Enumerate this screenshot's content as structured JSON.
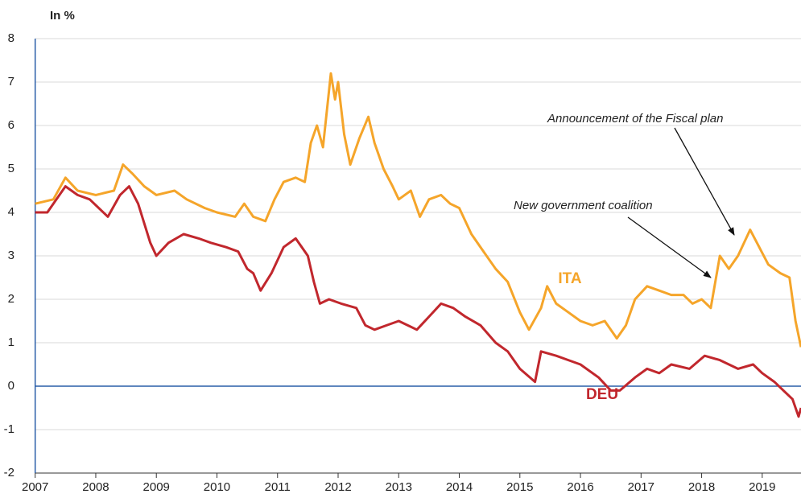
{
  "chart_data": {
    "type": "line",
    "y_label": "In %",
    "xlim": [
      2007,
      2019.64
    ],
    "xticks": [
      2007,
      2008,
      2009,
      2010,
      2011,
      2012,
      2013,
      2014,
      2015,
      2016,
      2017,
      2018,
      2019
    ],
    "ylim": [
      -2,
      8
    ],
    "yticks": [
      -2,
      -1,
      0,
      1,
      2,
      3,
      4,
      5,
      6,
      7,
      8
    ],
    "grid": true,
    "annotations": [
      "Announcement of the Fiscal plan",
      "New government coalition"
    ],
    "series": [
      {
        "name": "ITA",
        "color": "#f5a52a",
        "x": [
          2007.0,
          2007.3,
          2007.5,
          2007.7,
          2008.0,
          2008.3,
          2008.45,
          2008.6,
          2008.8,
          2009.0,
          2009.3,
          2009.5,
          2009.8,
          2010.0,
          2010.3,
          2010.45,
          2010.6,
          2010.8,
          2010.95,
          2011.1,
          2011.3,
          2011.45,
          2011.55,
          2011.65,
          2011.75,
          2011.88,
          2011.95,
          2012.0,
          2012.1,
          2012.2,
          2012.35,
          2012.5,
          2012.6,
          2012.75,
          2012.9,
          2013.0,
          2013.2,
          2013.35,
          2013.5,
          2013.7,
          2013.85,
          2014.0,
          2014.2,
          2014.4,
          2014.6,
          2014.8,
          2015.0,
          2015.15,
          2015.35,
          2015.45,
          2015.6,
          2015.8,
          2016.0,
          2016.2,
          2016.4,
          2016.6,
          2016.75,
          2016.9,
          2017.1,
          2017.3,
          2017.5,
          2017.7,
          2017.85,
          2018.0,
          2018.15,
          2018.3,
          2018.45,
          2018.6,
          2018.8,
          2018.95,
          2019.1,
          2019.3,
          2019.45,
          2019.55,
          2019.64
        ],
        "values": [
          4.2,
          4.3,
          4.8,
          4.5,
          4.4,
          4.5,
          5.1,
          4.9,
          4.6,
          4.4,
          4.5,
          4.3,
          4.1,
          4.0,
          3.9,
          4.2,
          3.9,
          3.8,
          4.3,
          4.7,
          4.8,
          4.7,
          5.6,
          6.0,
          5.5,
          7.2,
          6.6,
          7.0,
          5.8,
          5.1,
          5.7,
          6.2,
          5.6,
          5.0,
          4.6,
          4.3,
          4.5,
          3.9,
          4.3,
          4.4,
          4.2,
          4.1,
          3.5,
          3.1,
          2.7,
          2.4,
          1.7,
          1.3,
          1.8,
          2.3,
          1.9,
          1.7,
          1.5,
          1.4,
          1.5,
          1.1,
          1.4,
          2.0,
          2.3,
          2.2,
          2.1,
          2.1,
          1.9,
          2.0,
          1.8,
          3.0,
          2.7,
          3.0,
          3.6,
          3.2,
          2.8,
          2.6,
          2.5,
          1.5,
          0.9
        ]
      },
      {
        "name": "DEU",
        "color": "#c1272d",
        "x": [
          2007.0,
          2007.2,
          2007.5,
          2007.7,
          2007.9,
          2008.2,
          2008.4,
          2008.55,
          2008.7,
          2008.9,
          2009.0,
          2009.2,
          2009.45,
          2009.7,
          2009.9,
          2010.15,
          2010.35,
          2010.5,
          2010.6,
          2010.72,
          2010.9,
          2011.1,
          2011.3,
          2011.5,
          2011.6,
          2011.7,
          2011.85,
          2012.05,
          2012.3,
          2012.45,
          2012.6,
          2012.8,
          2013.0,
          2013.3,
          2013.5,
          2013.7,
          2013.9,
          2014.1,
          2014.35,
          2014.6,
          2014.8,
          2015.0,
          2015.25,
          2015.35,
          2015.6,
          2015.8,
          2016.0,
          2016.3,
          2016.5,
          2016.65,
          2016.9,
          2017.1,
          2017.3,
          2017.5,
          2017.8,
          2018.05,
          2018.3,
          2018.6,
          2018.85,
          2019.0,
          2019.2,
          2019.35,
          2019.5,
          2019.6,
          2019.64
        ],
        "values": [
          4.0,
          4.0,
          4.6,
          4.4,
          4.3,
          3.9,
          4.4,
          4.6,
          4.2,
          3.3,
          3.0,
          3.3,
          3.5,
          3.4,
          3.3,
          3.2,
          3.1,
          2.7,
          2.6,
          2.2,
          2.6,
          3.2,
          3.4,
          3.0,
          2.4,
          1.9,
          2.0,
          1.9,
          1.8,
          1.4,
          1.3,
          1.4,
          1.5,
          1.3,
          1.6,
          1.9,
          1.8,
          1.6,
          1.4,
          1.0,
          0.8,
          0.4,
          0.1,
          0.8,
          0.7,
          0.6,
          0.5,
          0.2,
          -0.1,
          -0.1,
          0.2,
          0.4,
          0.3,
          0.5,
          0.4,
          0.7,
          0.6,
          0.4,
          0.5,
          0.3,
          0.1,
          -0.1,
          -0.3,
          -0.7,
          -0.5
        ]
      }
    ]
  }
}
